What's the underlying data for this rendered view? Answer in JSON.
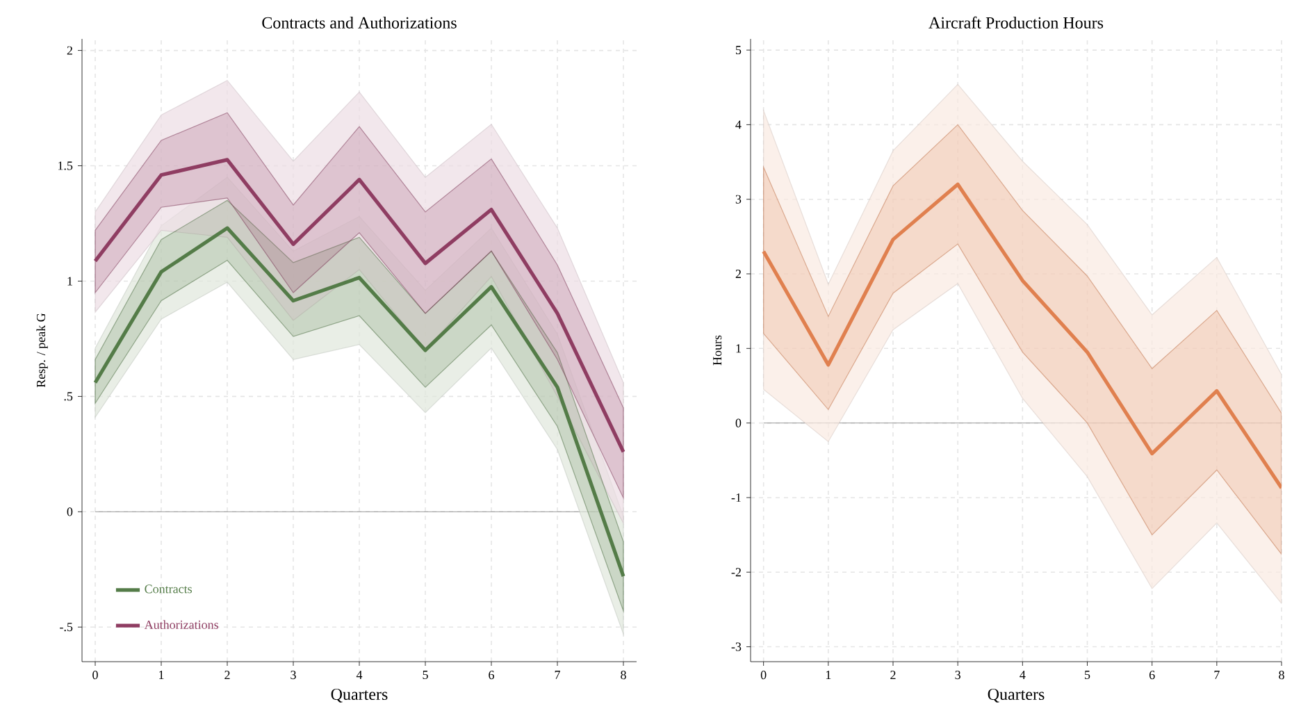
{
  "chart_data": [
    {
      "type": "line",
      "title": "Contracts and Authorizations",
      "xlabel": "Quarters",
      "ylabel": "Resp. / peak G",
      "x": [
        0,
        1,
        2,
        3,
        4,
        5,
        6,
        7,
        8
      ],
      "xlim": [
        -0.2,
        8.2
      ],
      "xticks": [
        0,
        1,
        2,
        3,
        4,
        5,
        6,
        7,
        8
      ],
      "ylim": [
        -0.65,
        2.05
      ],
      "yticks": [
        {
          "value": -0.5,
          "label": "-.5"
        },
        0,
        {
          "value": 0.5,
          "label": ".5"
        },
        1,
        1.5,
        2
      ],
      "grid": true,
      "legend": "bottom left",
      "line_style": "solid",
      "marker": "none",
      "ref_lines": [
        {
          "axis": "y",
          "value": 0,
          "color": "#808080"
        }
      ],
      "series": [
        {
          "color": "#dfe7dc",
          "values": [
            null,
            null,
            null,
            null,
            null,
            null,
            null,
            null,
            null
          ],
          "lower": [
            0.41,
            0.835,
            0.995,
            0.66,
            0.725,
            0.43,
            0.71,
            0.27,
            -0.53
          ],
          "upper": [
            0.71,
            1.24,
            1.45,
            1.13,
            1.28,
            0.96,
            1.23,
            0.77,
            -0.02
          ]
        },
        {
          "color": "#ecdde4",
          "values": [
            null,
            null,
            null,
            null,
            null,
            null,
            null,
            null,
            null
          ],
          "lower": [
            0.865,
            1.22,
            1.19,
            0.83,
            1.05,
            0.7,
            1.02,
            0.5,
            -0.05
          ],
          "upper": [
            1.3,
            1.72,
            1.87,
            1.52,
            1.82,
            1.45,
            1.68,
            1.23,
            0.56
          ]
        },
        {
          "name": "Contracts",
          "color": "#547c48",
          "values": [
            0.56,
            1.04,
            1.23,
            0.915,
            1.015,
            0.7,
            0.975,
            0.54,
            -0.28
          ],
          "lower": [
            0.47,
            0.915,
            1.09,
            0.76,
            0.85,
            0.54,
            0.81,
            0.37,
            -0.43
          ],
          "upper": [
            0.66,
            1.18,
            1.35,
            1.08,
            1.19,
            0.86,
            1.13,
            0.69,
            -0.13
          ]
        },
        {
          "name": "Authorizations",
          "color": "#8f3d62",
          "values": [
            1.087,
            1.46,
            1.526,
            1.16,
            1.44,
            1.077,
            1.31,
            0.86,
            0.26
          ],
          "lower": [
            0.95,
            1.32,
            1.36,
            0.95,
            1.21,
            0.86,
            1.13,
            0.66,
            0.06
          ],
          "upper": [
            1.22,
            1.61,
            1.73,
            1.33,
            1.67,
            1.3,
            1.53,
            1.07,
            0.45
          ]
        }
      ]
    },
    {
      "type": "line",
      "title": "Aircraft Production Hours",
      "xlabel": "Quarters",
      "ylabel": "Hours",
      "x": [
        0,
        1,
        2,
        3,
        4,
        5,
        6,
        7,
        8
      ],
      "xlim": [
        -0.2,
        8
      ],
      "xticks": [
        0,
        1,
        2,
        3,
        4,
        5,
        6,
        7,
        8
      ],
      "ylim": [
        -3.2,
        5.15
      ],
      "yticks": [
        -3,
        -2,
        -1,
        0,
        1,
        2,
        3,
        4,
        5
      ],
      "grid": true,
      "line_style": "solid",
      "marker": "none",
      "ref_lines": [
        {
          "axis": "y",
          "value": 0,
          "color": "#808080"
        }
      ],
      "series": [
        {
          "color": "#f9e9e1",
          "values": [
            null,
            null,
            null,
            null,
            null,
            null,
            null,
            null,
            null
          ],
          "lower": [
            0.45,
            -0.25,
            1.25,
            1.87,
            0.33,
            -0.72,
            -2.22,
            -1.34,
            -2.42
          ],
          "upper": [
            4.19,
            1.86,
            3.65,
            4.54,
            3.51,
            2.66,
            1.45,
            2.22,
            0.65
          ]
        },
        {
          "color": "#e0804f",
          "values": [
            2.3,
            0.78,
            2.46,
            3.2,
            1.91,
            0.95,
            -0.41,
            0.43,
            -0.87
          ],
          "lower": [
            1.2,
            0.18,
            1.74,
            2.4,
            0.95,
            0.0,
            -1.5,
            -0.63,
            -1.76
          ],
          "upper": [
            3.43,
            1.43,
            3.18,
            4.0,
            2.85,
            1.97,
            0.73,
            1.51,
            0.13
          ]
        }
      ]
    }
  ]
}
